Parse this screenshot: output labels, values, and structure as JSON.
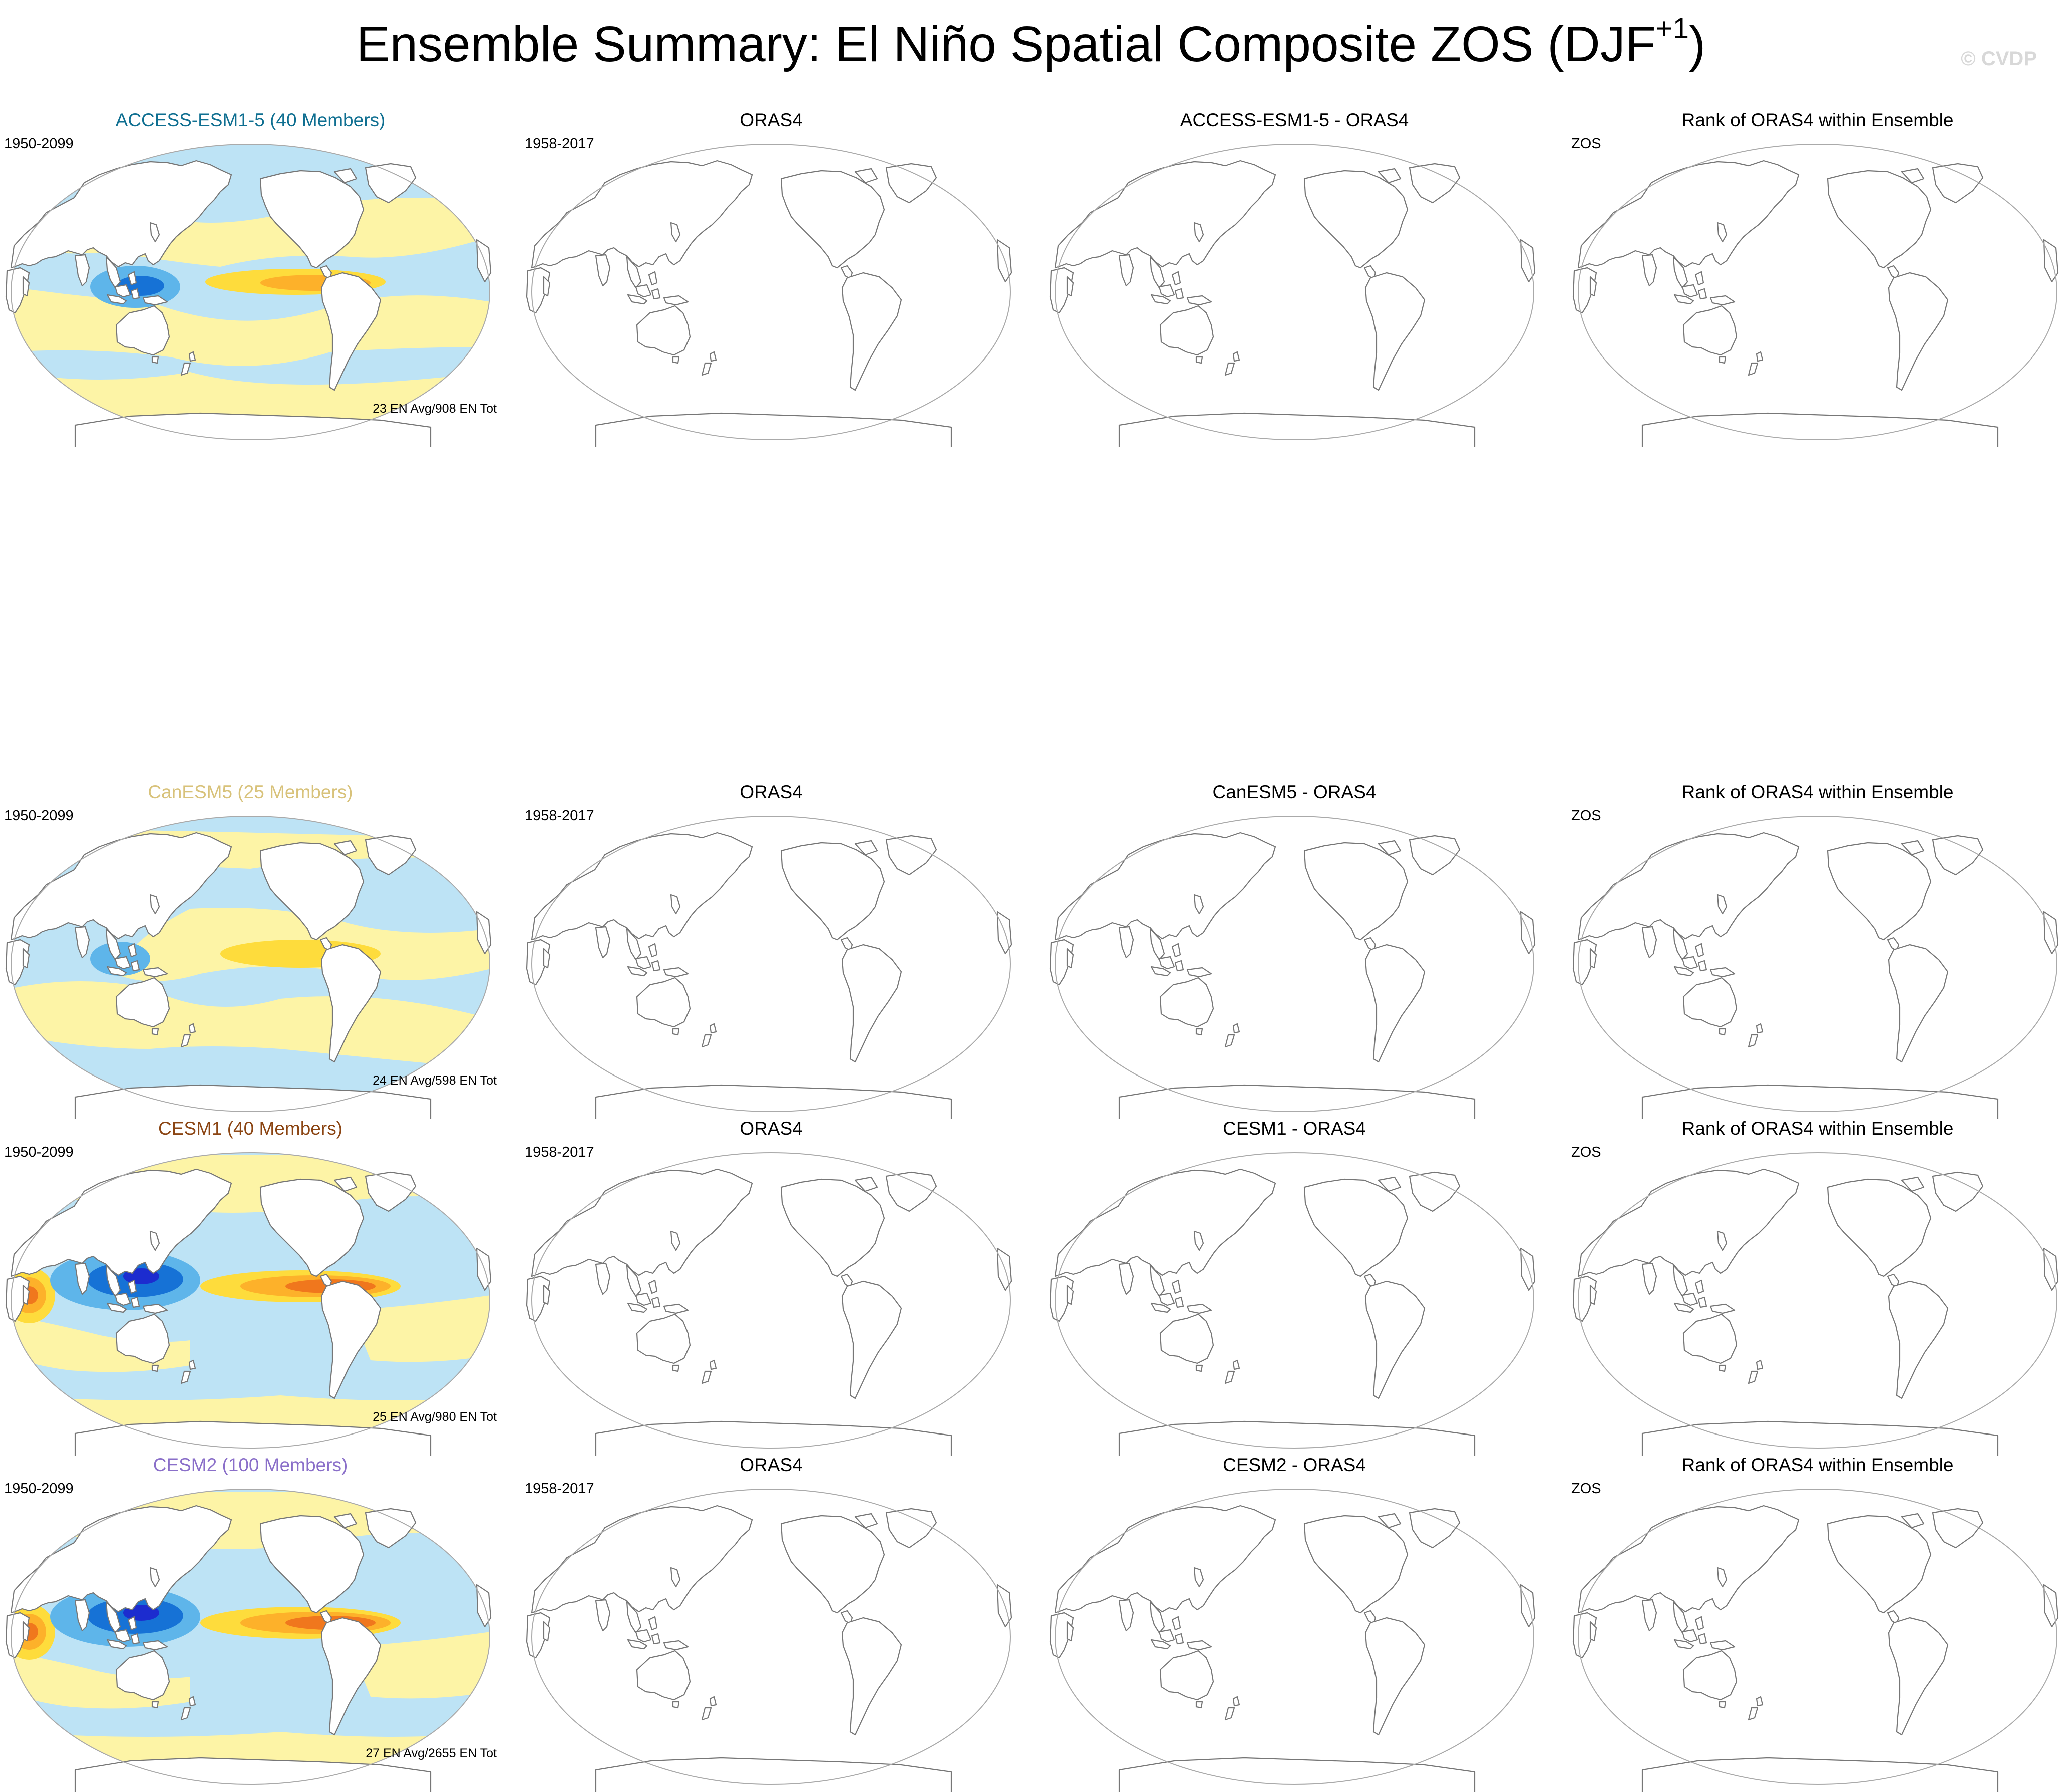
{
  "figure": {
    "title": "Ensemble Summary: El Niño Spatial Composite ZOS (DJF",
    "title_superscript": "+1",
    "title_close": ")",
    "watermark": "© CVDP"
  },
  "colors": {
    "ocean_light_blue": "#bde3f5",
    "pale_yellow": "#fdf4a6",
    "medium_blue": "#5eb5ea",
    "deep_blue": "#1672d6",
    "dark_blue": "#1c2ccf",
    "gold": "#fedc3c",
    "orange": "#fdb12a",
    "dark_orange": "#f0771d",
    "red": "#d23b1b",
    "coastline": "#777777",
    "frame": "#aaaaaa"
  },
  "rows": [
    {
      "model": {
        "title": "ACCESS-ESM1-5 (40 Members)",
        "title_color": "#0f6f91",
        "period": "1950-2099",
        "footer": "23 EN Avg/908 EN Tot",
        "pattern_strength": "moderate"
      },
      "obs": {
        "title": "ORAS4",
        "period": "1958-2017"
      },
      "diff": {
        "title": "ACCESS-ESM1-5 - ORAS4"
      },
      "rank": {
        "title": "Rank of ORAS4 within Ensemble",
        "label": "ZOS"
      }
    },
    {
      "model": {
        "title": "CanESM5 (25 Members)",
        "title_color": "#d8c27a",
        "period": "1950-2099",
        "footer": "24 EN Avg/598 EN Tot",
        "pattern_strength": "weak"
      },
      "obs": {
        "title": "ORAS4",
        "period": "1958-2017"
      },
      "diff": {
        "title": "CanESM5 - ORAS4"
      },
      "rank": {
        "title": "Rank of ORAS4 within Ensemble",
        "label": "ZOS"
      }
    },
    {
      "model": {
        "title": "CESM1 (40 Members)",
        "title_color": "#8b4513",
        "period": "1950-2099",
        "footer": "25 EN Avg/980 EN Tot",
        "pattern_strength": "strong"
      },
      "obs": {
        "title": "ORAS4",
        "period": "1958-2017"
      },
      "diff": {
        "title": "CESM1 - ORAS4"
      },
      "rank": {
        "title": "Rank of ORAS4 within Ensemble",
        "label": "ZOS"
      }
    },
    {
      "model": {
        "title": "CESM2 (100 Members)",
        "title_color": "#8a6fc9",
        "period": "1950-2099",
        "footer": "27 EN Avg/2655 EN Tot",
        "pattern_strength": "strong"
      },
      "obs": {
        "title": "ORAS4",
        "period": "1958-2017"
      },
      "diff": {
        "title": "CESM2 - ORAS4"
      },
      "rank": {
        "title": "Rank of ORAS4 within Ensemble",
        "label": "ZOS"
      }
    }
  ]
}
